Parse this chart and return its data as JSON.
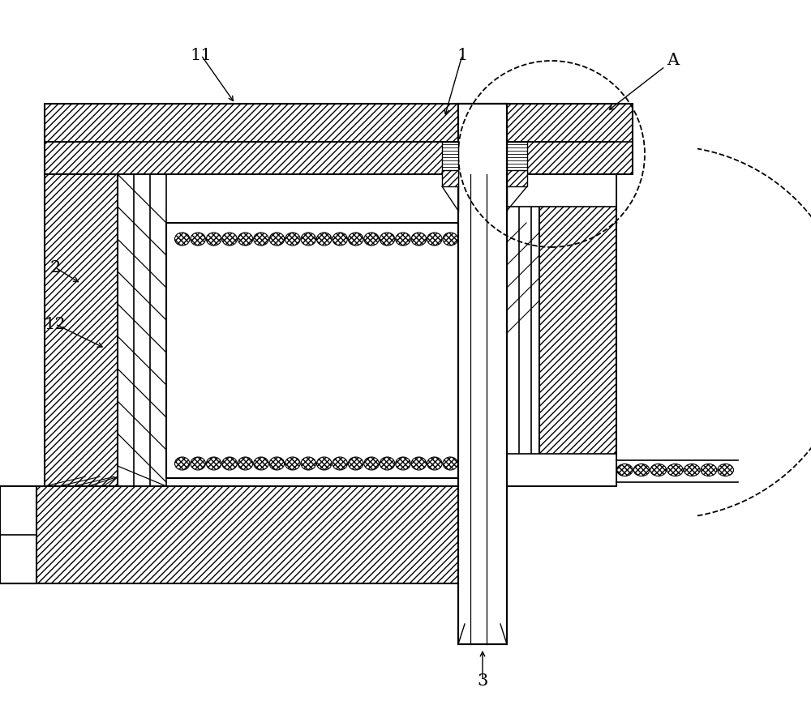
{
  "bg_color": "#ffffff",
  "line_color": "#000000",
  "fig_width": 10.0,
  "fig_height": 8.91,
  "dpi": 100
}
